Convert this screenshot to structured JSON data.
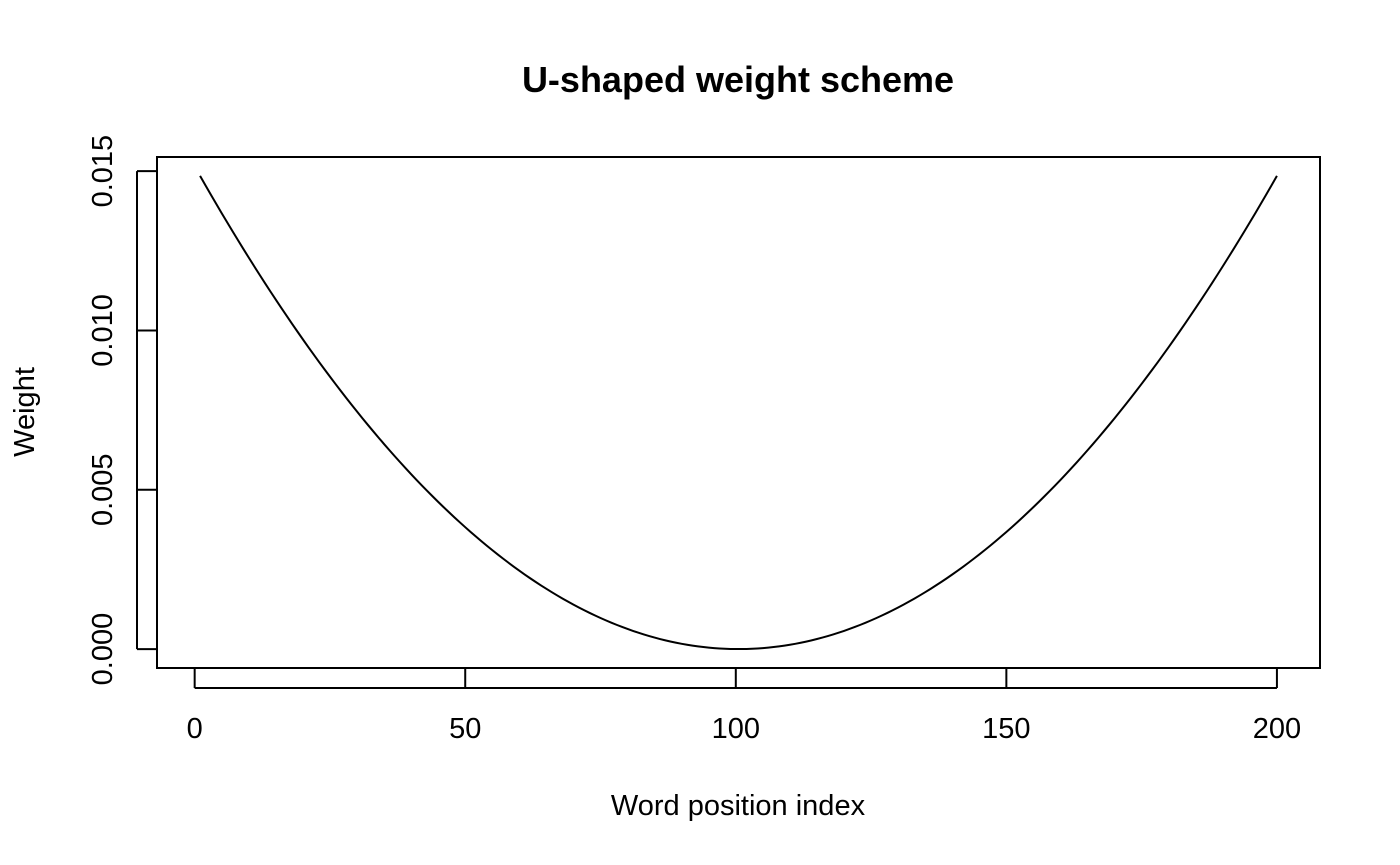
{
  "chart_data": {
    "type": "line",
    "title": "U-shaped weight scheme",
    "xlabel": "Word position index",
    "ylabel": "Weight",
    "xlim": [
      -6.96,
      207.96
    ],
    "ylim": [
      -0.000594,
      0.015444
    ],
    "x_ticks": [
      0,
      50,
      100,
      150,
      200
    ],
    "x_tick_labels": [
      "0",
      "50",
      "100",
      "150",
      "200"
    ],
    "y_ticks": [
      0.0,
      0.005,
      0.01,
      0.015
    ],
    "y_tick_labels": [
      "0.000",
      "0.005",
      "0.010",
      "0.015"
    ],
    "grid": false,
    "line_color": "#000000",
    "series": [
      {
        "name": "weight",
        "function": "quadratic",
        "x_start": 1,
        "x_end": 200,
        "x_step": 1,
        "vertex_x": 100.5,
        "vertex_y": 0.0,
        "endpoint_y": 0.01485
      }
    ]
  }
}
